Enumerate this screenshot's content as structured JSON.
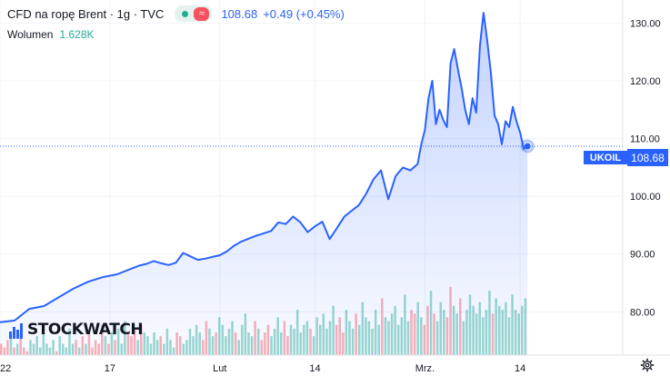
{
  "legend": {
    "symbol": "CFD na ropę Brent · 1g · TVC",
    "market_status_icon": "green-dot-icon",
    "wave_icon": "wave-icon",
    "wave_glyph": "≈",
    "price": "108.68",
    "change": "+0.49 (+0.45%)"
  },
  "volume": {
    "label": "Wolumen",
    "value": "1.628K"
  },
  "price_tag": {
    "ticker": "UKOIL",
    "value": "108.68"
  },
  "logo": {
    "text": "STOCKWATCH"
  },
  "colors": {
    "line": "#2962ff",
    "area_top": "#2962ff",
    "vol_up": "#22ab94",
    "vol_down": "#f7525f",
    "grid": "#f0f3fa",
    "axis_text": "#131722"
  },
  "chart_data": {
    "type": "area",
    "title": "",
    "y_ticks": [
      "80.00",
      "90.00",
      "100.00",
      "110.00",
      "120.00",
      "130.00"
    ],
    "ylim": [
      72.5,
      134
    ],
    "x_ticks": [
      {
        "label": "22",
        "day": 0
      },
      {
        "label": "17",
        "day": 15
      },
      {
        "label": "Lut",
        "day": 30
      },
      {
        "label": "14",
        "day": 43
      },
      {
        "label": "Mrz.",
        "day": 58
      },
      {
        "label": "14",
        "day": 71
      }
    ],
    "xlim": [
      0,
      85
    ],
    "last_price": 108.68,
    "series": [
      {
        "x": [
          0,
          2,
          4,
          6,
          8,
          10,
          12,
          14,
          16,
          18,
          19,
          20,
          21,
          22,
          23,
          24,
          25,
          26,
          27,
          28,
          29,
          30,
          31,
          32,
          33,
          34,
          35,
          36,
          37,
          38,
          39,
          40,
          41,
          42,
          43,
          44,
          45,
          46,
          47,
          48,
          49,
          50,
          51,
          52,
          53,
          54,
          55,
          56,
          57,
          57.5,
          58,
          58.5,
          59,
          59.5,
          60,
          60.5,
          61,
          61.5,
          62,
          62.5,
          63,
          63.5,
          64,
          64.5,
          65,
          65.5,
          66,
          66.5,
          67,
          67.5,
          68,
          68.5,
          69,
          69.5,
          70,
          70.5,
          71,
          71.5,
          72
        ],
        "y": [
          78.2,
          78.5,
          80.5,
          81,
          82.5,
          84,
          85.2,
          86,
          86.5,
          87.5,
          88,
          88.3,
          88.8,
          88.4,
          88.1,
          88.5,
          90.2,
          89.6,
          89,
          89.2,
          89.5,
          89.8,
          90.5,
          91.5,
          92.2,
          92.7,
          93.2,
          93.6,
          94,
          95.5,
          95.2,
          96.5,
          95.5,
          93.8,
          94.8,
          95.6,
          92.6,
          94.5,
          96.5,
          97.5,
          98.5,
          100.5,
          103,
          104.5,
          99.5,
          103.5,
          105,
          104.5,
          105.6,
          109,
          111.5,
          117,
          120,
          112.5,
          115,
          113.2,
          112,
          123,
          125.5,
          122,
          118.8,
          115,
          112.5,
          117,
          114.5,
          126,
          131.8,
          127,
          121.5,
          114,
          112.5,
          109,
          113,
          112,
          115.5,
          113,
          111,
          108.2,
          108.68
        ]
      }
    ],
    "volume_bars": [
      3,
      2,
      4,
      5,
      2,
      3,
      6,
      2,
      1,
      4,
      3,
      5,
      2,
      6,
      3,
      2,
      4,
      1,
      5,
      3,
      2,
      7,
      3,
      4,
      2,
      5,
      3,
      6,
      2,
      4,
      3,
      8,
      5,
      3,
      6,
      4,
      7,
      3,
      9,
      6,
      5,
      7,
      4,
      8,
      6,
      5,
      3,
      6,
      4,
      5,
      3,
      7,
      4,
      2,
      6,
      5,
      3,
      4,
      7,
      5,
      8,
      6,
      4,
      9,
      7,
      5,
      6,
      10,
      8,
      5,
      7,
      9,
      6,
      4,
      8,
      11,
      6,
      5,
      9,
      7,
      4,
      6,
      8,
      5,
      7,
      10,
      6,
      9,
      5,
      8,
      7,
      12,
      6,
      8,
      9,
      7,
      5,
      10,
      8,
      11,
      7,
      9,
      13,
      8,
      10,
      6,
      12,
      9,
      7,
      11,
      8,
      14,
      10,
      9,
      7,
      12,
      8,
      15,
      10,
      9,
      11,
      13,
      8,
      10,
      16,
      9,
      12,
      11,
      14,
      10,
      8,
      13,
      17,
      11,
      9,
      14,
      12,
      10,
      18,
      13,
      11,
      15,
      9,
      12,
      16,
      13,
      11,
      14,
      10,
      12,
      17,
      11,
      15,
      13,
      12,
      14,
      10,
      16,
      12,
      11,
      13,
      15
    ]
  },
  "settings_icon": "gear-icon"
}
